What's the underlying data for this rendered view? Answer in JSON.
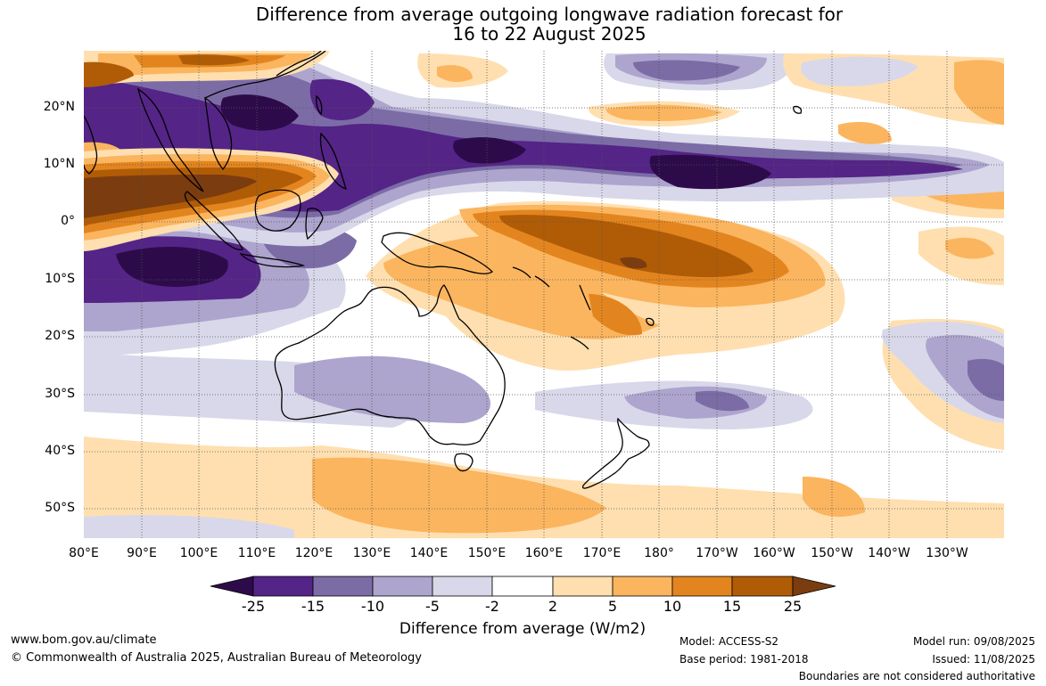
{
  "title": {
    "line1": "Difference from average outgoing longwave radiation forecast for",
    "line2": "16 to 22 August 2025"
  },
  "lat_labels": [
    "20°N",
    "10°N",
    "0°",
    "10°S",
    "20°S",
    "30°S",
    "40°S",
    "50°S"
  ],
  "lon_labels": [
    "80°E",
    "90°E",
    "100°E",
    "110°E",
    "120°E",
    "130°E",
    "140°E",
    "150°E",
    "160°E",
    "170°E",
    "180°",
    "170°W",
    "160°W",
    "150°W",
    "140°W",
    "130°W"
  ],
  "colorbar": {
    "labels": [
      "-25",
      "-15",
      "-10",
      "-5",
      "-2",
      "2",
      "5",
      "10",
      "15",
      "25"
    ],
    "colors": [
      "#2d0b4b",
      "#542487",
      "#7b6ca6",
      "#ada5cd",
      "#d8d8ea",
      "#ffffff",
      "#ffdfaf",
      "#fbb55f",
      "#e3851f",
      "#b05c07",
      "#7b3c0f"
    ],
    "title": "Difference from average (W/m2)"
  },
  "footer": {
    "website": "www.bom.gov.au/climate",
    "copyright": "© Commonwealth of Australia 2025, Australian Bureau of Meteorology",
    "model": "Model: ACCESS-S2",
    "base_period": "Base period: 1981-2018",
    "model_run": "Model run: 09/08/2025",
    "issued": "Issued: 11/08/2025",
    "disclaimer": "Boundaries are not considered authoritative"
  }
}
